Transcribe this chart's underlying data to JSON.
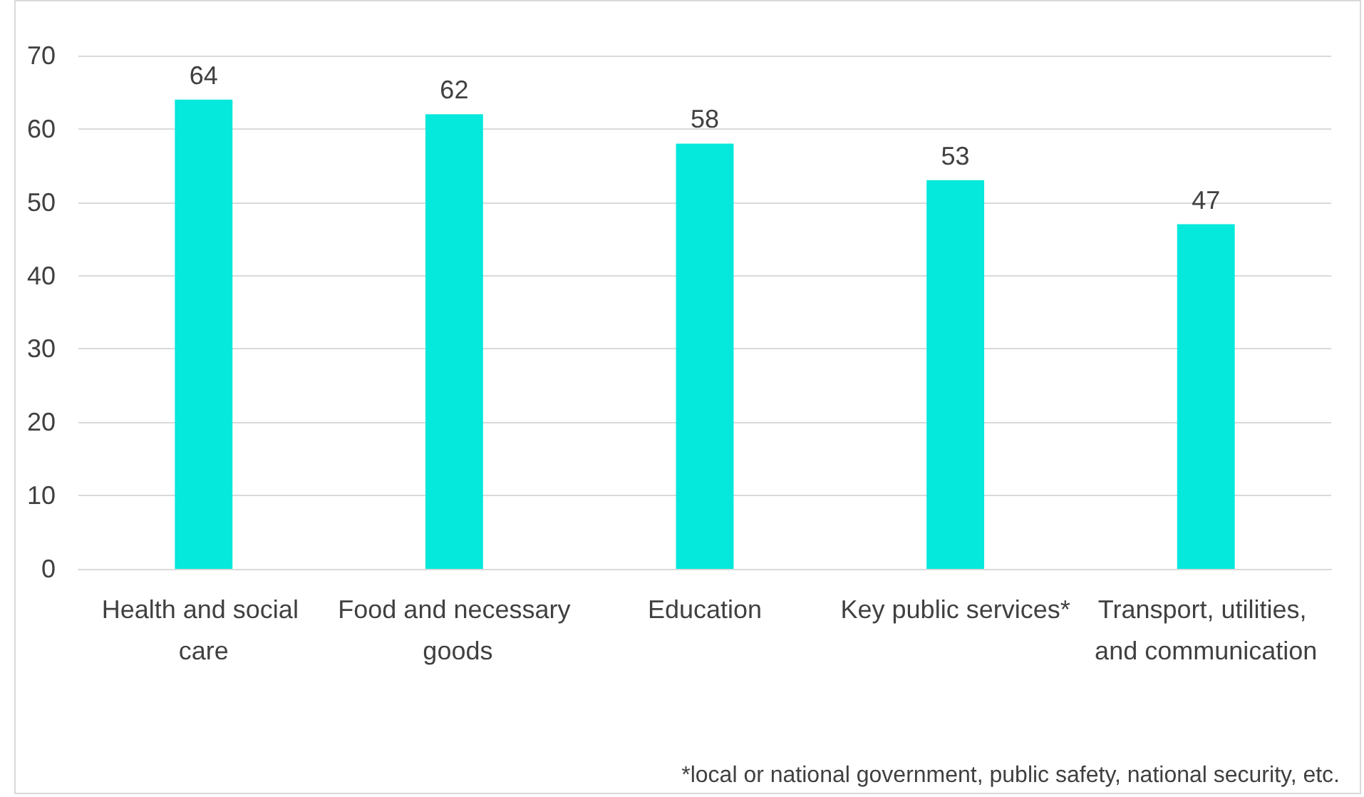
{
  "chart_data": {
    "type": "bar",
    "categories": [
      "Health and social care",
      "Food and necessary goods",
      "Education",
      "Key public services*",
      "Transport, utilities, and communication"
    ],
    "values": [
      64,
      62,
      58,
      53,
      47
    ],
    "color": "#05e8dc",
    "ylim": [
      0,
      70
    ],
    "yticks": [
      0,
      10,
      20,
      30,
      40,
      50,
      60,
      70
    ],
    "grid": "y",
    "data_labels": true,
    "annotations": [
      "*local or national government, public safety, national security, etc."
    ]
  }
}
